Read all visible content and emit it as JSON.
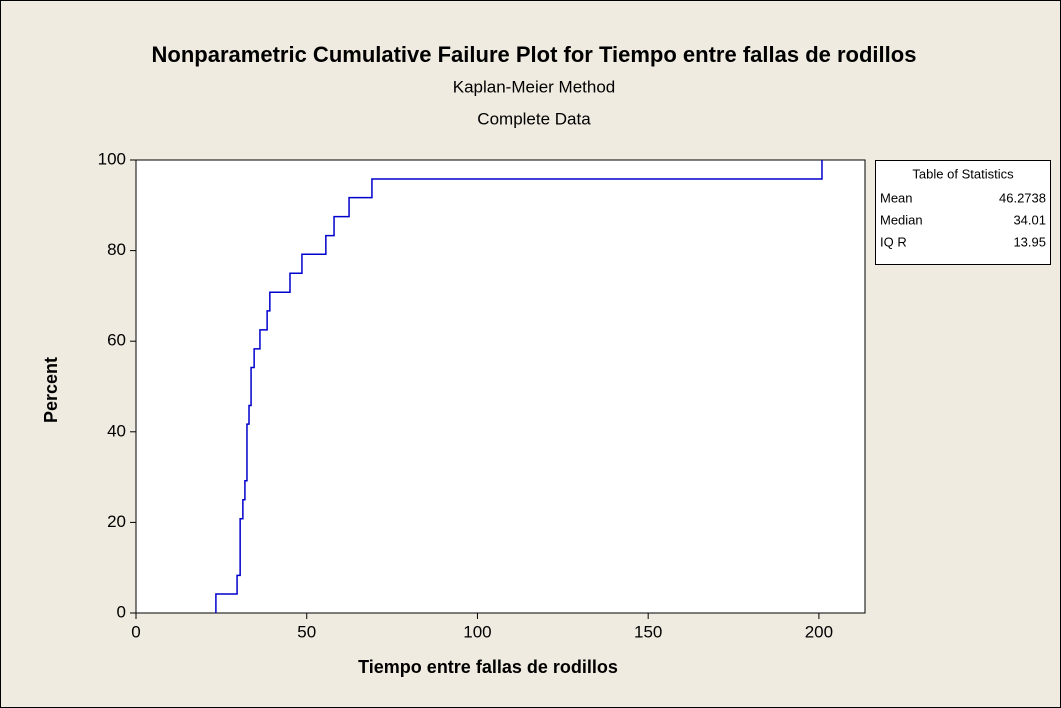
{
  "chart_data": {
    "type": "step",
    "title": "Nonparametric Cumulative Failure Plot for Tiempo entre fallas de rodillos",
    "subtitle": [
      "Kaplan-Meier Method",
      "Complete Data"
    ],
    "x_label": "Tiempo entre fallas de rodillos",
    "y_label": "Percent",
    "x": [
      23.4,
      29.6,
      30.5,
      31.3,
      31.9,
      32.5,
      33.1,
      33.7,
      34.6,
      36.3,
      38.4,
      39.2,
      45.1,
      48.6,
      55.6,
      58.0,
      62.4,
      69.1,
      200.9
    ],
    "series": [
      {
        "name": "Percent",
        "color": "#0000cc",
        "values": [
          4.2,
          8.3,
          20.8,
          25,
          29.2,
          41.7,
          45.8,
          54.2,
          58.3,
          62.5,
          66.7,
          70.8,
          75,
          79.2,
          83.3,
          87.5,
          91.7,
          95.8,
          100
        ]
      }
    ],
    "xlim": [
      0,
      213.5
    ],
    "xticks": [
      0,
      50,
      100,
      150,
      200
    ],
    "ylim": [
      0,
      100
    ],
    "yticks": [
      0,
      20,
      40,
      60,
      80,
      100
    ],
    "grid": false,
    "stats_table": {
      "title": "Table of Statistics",
      "rows": [
        [
          "Mean",
          "46.2738"
        ],
        [
          "Median",
          "34.01"
        ],
        [
          "IQ R",
          "13.95"
        ]
      ]
    }
  }
}
